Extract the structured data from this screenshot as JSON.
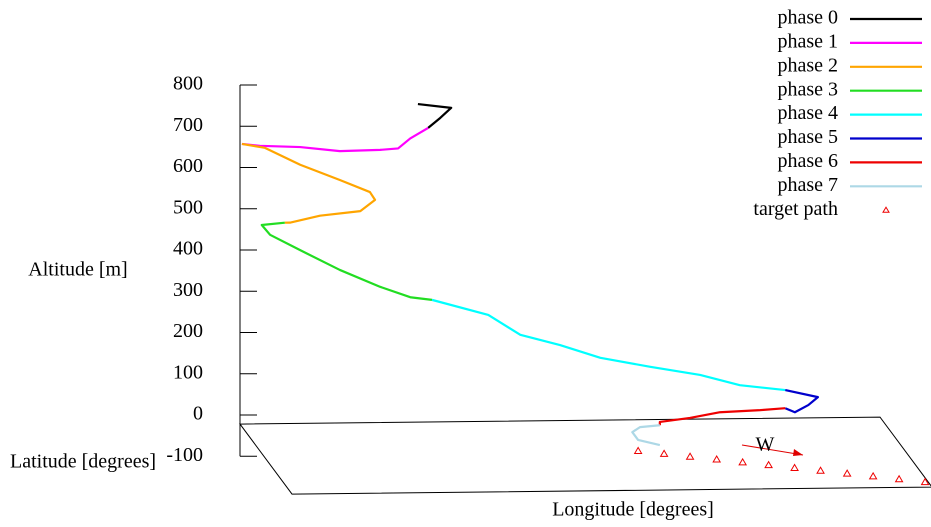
{
  "chart_data": {
    "type": "line3d",
    "xlabel": "Longitude [degrees]",
    "ylabel": "Latitude [degrees]",
    "zlabel": "Altitude [m]",
    "xlim": [
      0,
      1
    ],
    "ylim": [
      0,
      1
    ],
    "zlim": [
      -100,
      800
    ],
    "zticks": [
      -100,
      0,
      100,
      200,
      300,
      400,
      500,
      600,
      700,
      800
    ],
    "legend": "top right",
    "annotations": [
      {
        "text": "W",
        "color": "#e00000"
      }
    ],
    "series": [
      {
        "name": "phase 0",
        "color": "#000000",
        "mode": "line",
        "x": [
          0.278,
          0.33,
          0.313,
          0.294
        ],
        "y": [
          0,
          0,
          0,
          0
        ],
        "values": [
          749,
          739,
          715,
          691
        ]
      },
      {
        "name": "phase 1",
        "color": "#ff00ff",
        "mode": "line",
        "x": [
          0.294,
          0.266,
          0.247,
          0.219,
          0.156,
          0.094,
          0.031,
          0.003
        ],
        "y": [
          0,
          0,
          0,
          0,
          0,
          0,
          0,
          0
        ],
        "values": [
          691,
          666,
          642,
          639,
          637,
          648,
          652,
          657
        ]
      },
      {
        "name": "phase 2",
        "color": "#ffa500",
        "mode": "line",
        "x": [
          0.003,
          0.039,
          0.094,
          0.156,
          0.203,
          0.211,
          0.188,
          0.125,
          0.078,
          0.07
        ],
        "y": [
          0,
          0,
          0,
          0,
          0,
          0,
          0,
          0,
          0,
          0
        ],
        "values": [
          657,
          647,
          605,
          567,
          537,
          518,
          491,
          481,
          465,
          465
        ]
      },
      {
        "name": "phase 3",
        "color": "#22dd22",
        "mode": "line",
        "x": [
          0.07,
          0.034,
          0.047,
          0.094,
          0.156,
          0.219,
          0.266,
          0.3
        ],
        "y": [
          0,
          0,
          0,
          0,
          0,
          0,
          0,
          0
        ],
        "values": [
          465,
          460,
          436,
          398,
          349,
          307,
          281,
          274
        ]
      },
      {
        "name": "phase 4",
        "color": "#00ffff",
        "mode": "line",
        "x": [
          0.3,
          0.388,
          0.438,
          0.5,
          0.563,
          0.641,
          0.719,
          0.781,
          0.852
        ],
        "y": [
          0,
          0,
          0,
          0,
          0,
          0,
          0,
          0,
          0
        ],
        "values": [
          274,
          236,
          187,
          161,
          129,
          106,
          85,
          59,
          46
        ]
      },
      {
        "name": "phase 5",
        "color": "#0000cc",
        "mode": "line",
        "x": [
          0.852,
          0.903,
          0.888,
          0.867,
          0.852
        ],
        "y": [
          0,
          0,
          0,
          0,
          0
        ],
        "values": [
          46,
          28,
          9,
          -8,
          2
        ]
      },
      {
        "name": "phase 6",
        "color": "#ee0000",
        "mode": "line",
        "x": [
          0.852,
          0.813,
          0.75,
          0.703,
          0.656,
          0.656
        ],
        "y": [
          0,
          0,
          0,
          0,
          0,
          0
        ],
        "values": [
          2,
          -2,
          -6,
          -19,
          -28,
          -36
        ]
      },
      {
        "name": "phase 7",
        "color": "#add8e6",
        "mode": "line",
        "x": [
          0.656,
          0.625,
          0.613,
          0.622,
          0.656
        ],
        "y": [
          0,
          0,
          0,
          0,
          0
        ],
        "values": [
          -36,
          -40,
          -52,
          -71,
          -84
        ]
      },
      {
        "name": "target path",
        "color": "#ee0000",
        "mode": "points",
        "x": [
          0.586,
          0.623,
          0.66,
          0.698,
          0.735,
          0.772,
          0.809,
          0.846,
          0.884,
          0.921,
          0.958,
          0.995
        ],
        "y": [
          0.444,
          0.488,
          0.532,
          0.576,
          0.62,
          0.664,
          0.708,
          0.752,
          0.796,
          0.84,
          0.884,
          0.928
        ],
        "values": [
          -22,
          -22,
          -22,
          -22,
          -22,
          -22,
          -22,
          -22,
          -22,
          -22,
          -22,
          -22
        ]
      }
    ]
  }
}
